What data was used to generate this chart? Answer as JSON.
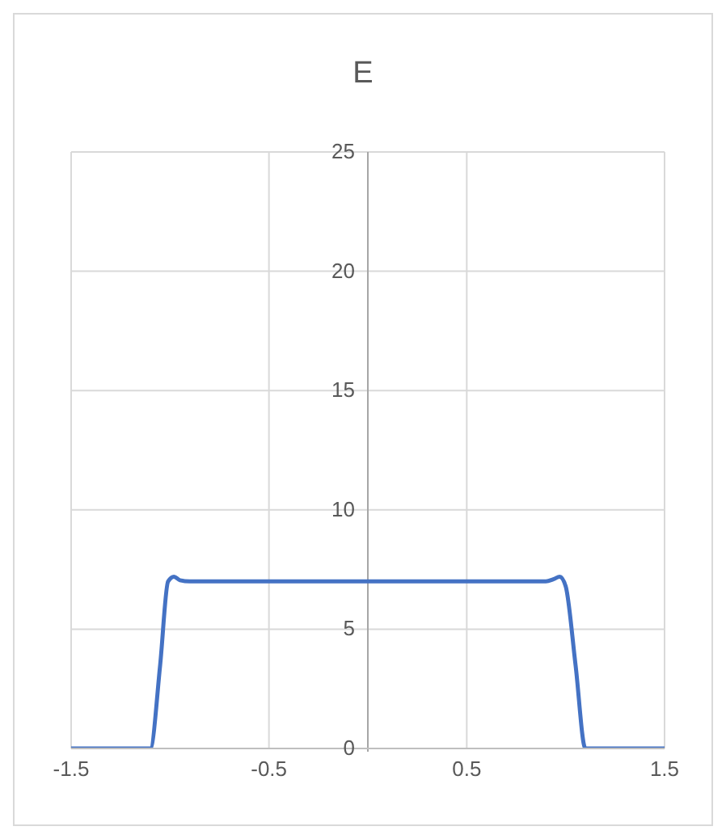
{
  "chart_data": {
    "type": "line",
    "title": "E",
    "x": [
      -1.5,
      -1.12,
      -1.1,
      -1.05,
      -1.01,
      -0.98,
      -0.95,
      -0.9,
      0.9,
      0.94,
      0.97,
      1.0,
      1.05,
      1.1,
      1.5
    ],
    "series": [
      {
        "color": "#4472c4",
        "values": [
          0,
          0,
          0,
          3.5,
          7.0,
          7.2,
          7.05,
          7.0,
          7.0,
          7.1,
          7.2,
          6.8,
          3.5,
          0,
          0
        ]
      }
    ],
    "xlim": [
      -1.5,
      1.5
    ],
    "xticks": [
      -1.5,
      -0.5,
      0.5,
      1.5
    ],
    "ylim": [
      0,
      25
    ],
    "yticks": [
      0,
      5,
      10,
      15,
      20,
      25
    ],
    "grid": true,
    "legend": false,
    "marker": "none",
    "line_style": "solid"
  }
}
